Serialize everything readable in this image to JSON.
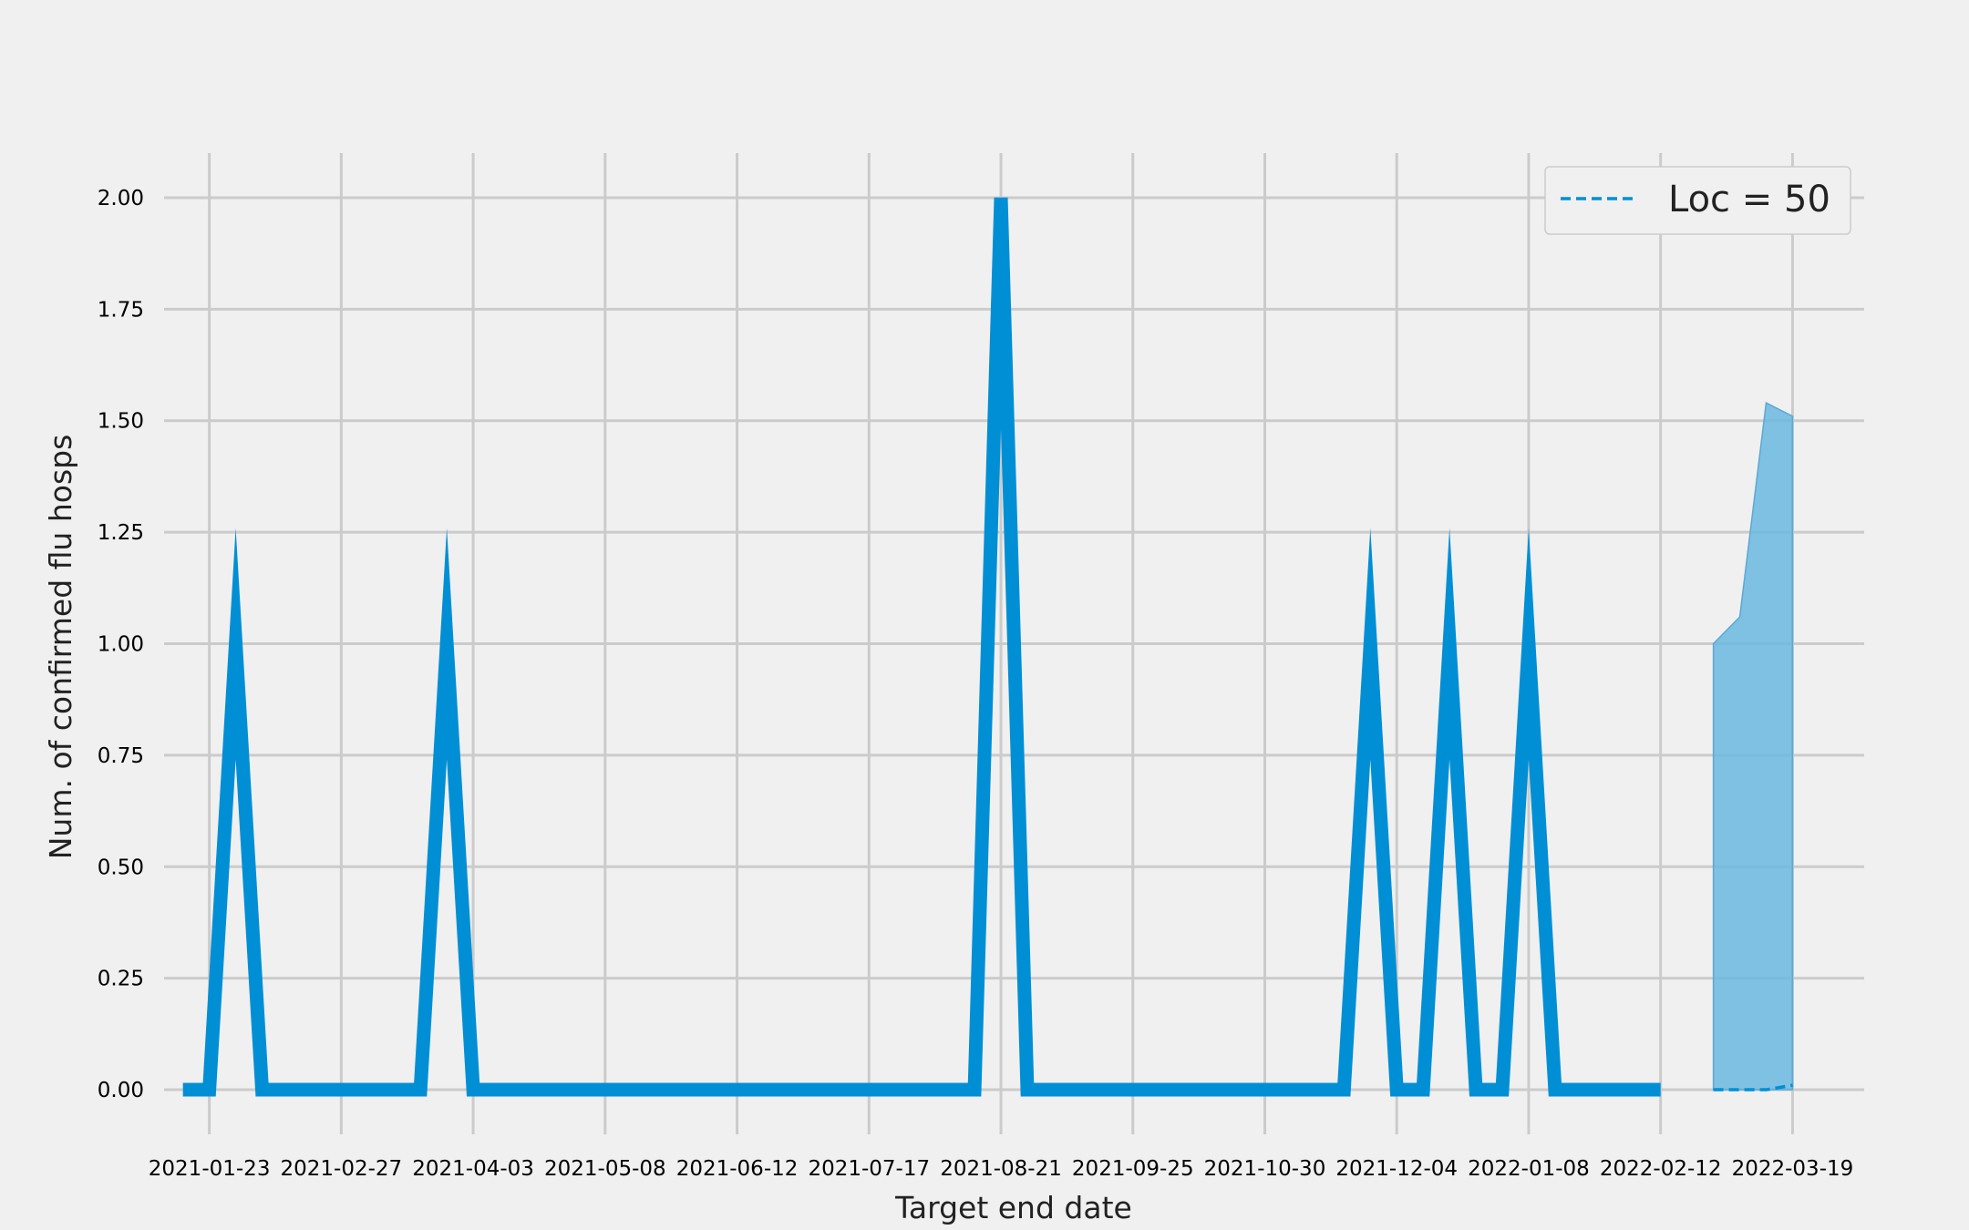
{
  "chart_data": {
    "type": "line",
    "title": "",
    "xlabel": "Target end date",
    "ylabel": "Num. of confirmed flu hosps",
    "x_ticks": [
      "2021-01-23",
      "2021-02-27",
      "2021-04-03",
      "2021-05-08",
      "2021-06-12",
      "2021-07-17",
      "2021-08-21",
      "2021-09-25",
      "2021-10-30",
      "2021-12-04",
      "2022-01-08",
      "2022-02-12",
      "2022-03-19"
    ],
    "y_ticks": [
      "0.00",
      "0.25",
      "0.50",
      "0.75",
      "1.00",
      "1.25",
      "1.50",
      "1.75",
      "2.00"
    ],
    "ylim": [
      -0.1,
      2.1
    ],
    "xlim": [
      "2021-01-11",
      "2022-04-07"
    ],
    "grid": true,
    "legend_position": "top-right",
    "legend": [
      {
        "label": "Loc = 50",
        "style": "dashed",
        "color": "#008fd5"
      }
    ],
    "colors": {
      "line": "#008fd5",
      "band": "#6ab8e0",
      "background": "#f0f0f0",
      "grid": "#cbcbcb"
    },
    "observed": {
      "start_date": "2021-01-16",
      "values": [
        0,
        0,
        1,
        0,
        0,
        0,
        0,
        0,
        0,
        0,
        1,
        0,
        0,
        0,
        0,
        0,
        0,
        0,
        0,
        0,
        0,
        0,
        0,
        0,
        0,
        0,
        0,
        0,
        0,
        0,
        0,
        2,
        0,
        0,
        0,
        0,
        0,
        0,
        0,
        0,
        0,
        0,
        0,
        0,
        0,
        1,
        0,
        0,
        1,
        0,
        0,
        1,
        0,
        0,
        0,
        0,
        0
      ]
    },
    "forecast": {
      "x": [
        "2022-02-26",
        "2022-03-05",
        "2022-03-12",
        "2022-03-19"
      ],
      "median": [
        0,
        0,
        0,
        0.01
      ],
      "lower": [
        0,
        0,
        0,
        0
      ],
      "upper": [
        1.0,
        1.06,
        1.54,
        1.51
      ]
    }
  }
}
